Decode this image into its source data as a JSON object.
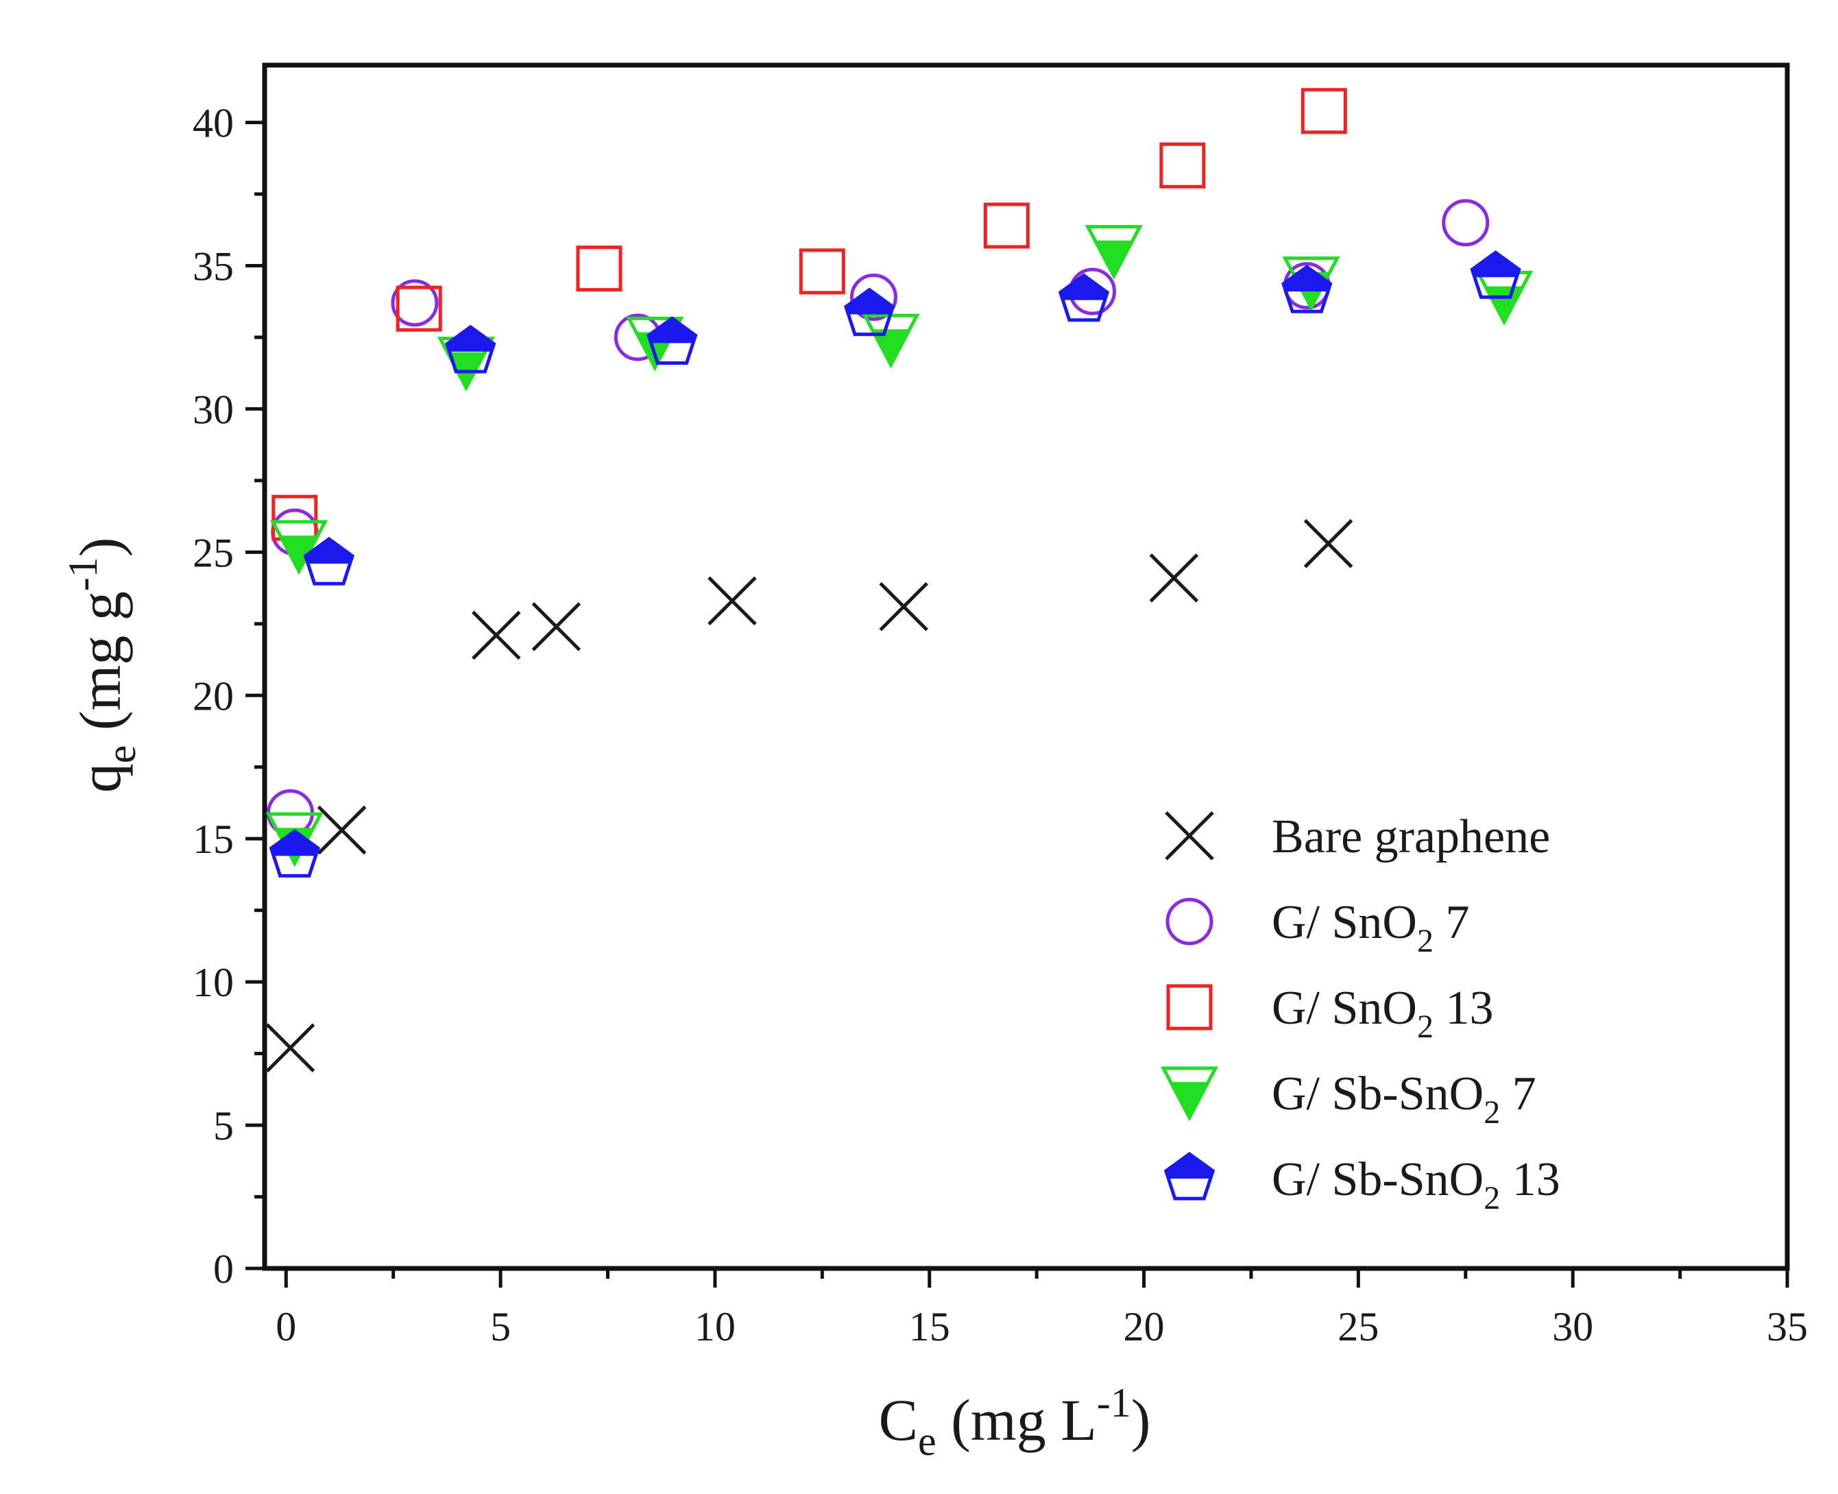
{
  "chart_data": {
    "type": "scatter",
    "xlim": [
      -0.5,
      35
    ],
    "ylim": [
      0,
      42
    ],
    "xticks": [
      0,
      5,
      10,
      15,
      20,
      25,
      30,
      35
    ],
    "yticks": [
      0,
      5,
      10,
      15,
      20,
      25,
      30,
      35,
      40
    ],
    "xlabel": {
      "main": "C",
      "sub": "e",
      "rest": " (mg L",
      "sup": "-1",
      "close": ")"
    },
    "ylabel": {
      "main": "q",
      "sub": "e",
      "rest": " (mg g",
      "sup": "-1",
      "close": ")"
    },
    "legend_position": "bottom-right",
    "series": [
      {
        "name": "Bare graphene",
        "label_main": "Bare graphene",
        "label_sub": "",
        "label_rest": "",
        "marker": "x",
        "color": "#1a1a1a",
        "points": [
          [
            0.1,
            7.7
          ],
          [
            1.3,
            15.3
          ],
          [
            4.9,
            22.1
          ],
          [
            6.3,
            22.4
          ],
          [
            10.4,
            23.3
          ],
          [
            14.4,
            23.1
          ],
          [
            20.7,
            24.1
          ],
          [
            24.3,
            25.3
          ]
        ]
      },
      {
        "name": "G/ SnO2 7",
        "label_main": "G/ SnO",
        "label_sub": "2",
        "label_rest": " 7",
        "marker": "circle",
        "color": "#8a2be2",
        "points": [
          [
            0.1,
            15.9
          ],
          [
            0.2,
            25.7
          ],
          [
            3.0,
            33.7
          ],
          [
            8.2,
            32.5
          ],
          [
            13.7,
            33.9
          ],
          [
            18.8,
            34.1
          ],
          [
            23.8,
            34.3
          ],
          [
            27.5,
            36.5
          ]
        ]
      },
      {
        "name": "G/ SnO2 13",
        "label_main": "G/ SnO",
        "label_sub": "2",
        "label_rest": " 13",
        "marker": "square",
        "color": "#ee2222",
        "points": [
          [
            0.2,
            26.2
          ],
          [
            3.1,
            33.5
          ],
          [
            7.3,
            34.9
          ],
          [
            12.5,
            34.8
          ],
          [
            16.8,
            36.4
          ],
          [
            20.9,
            38.5
          ],
          [
            24.2,
            40.4
          ]
        ]
      },
      {
        "name": "G/ Sb-SnO2 7",
        "label_main": "G/ Sb-SnO",
        "label_sub": "2",
        "label_rest": " 7",
        "marker": "triangle-down",
        "color": "#22dd22",
        "points": [
          [
            0.2,
            15.0
          ],
          [
            0.3,
            25.2
          ],
          [
            4.2,
            31.6
          ],
          [
            8.6,
            32.3
          ],
          [
            14.1,
            32.4
          ],
          [
            19.3,
            35.5
          ],
          [
            23.9,
            34.4
          ],
          [
            28.4,
            33.9
          ]
        ]
      },
      {
        "name": "G/ Sb-SnO2 13",
        "label_main": "G/ Sb-SnO",
        "label_sub": "2",
        "label_rest": " 13",
        "marker": "pentagon-half",
        "color": "#1a1aee",
        "points": [
          [
            0.2,
            14.4
          ],
          [
            1.0,
            24.6
          ],
          [
            4.3,
            32.0
          ],
          [
            9.0,
            32.3
          ],
          [
            13.6,
            33.3
          ],
          [
            18.6,
            33.8
          ],
          [
            23.8,
            34.1
          ],
          [
            28.2,
            34.6
          ]
        ]
      }
    ]
  }
}
